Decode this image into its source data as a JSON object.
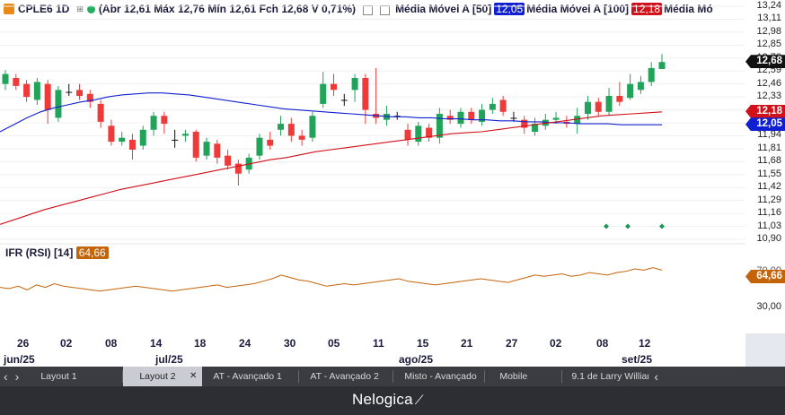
{
  "header": {
    "symbol": "CPLE6 1D",
    "ohlc": "(Abr 12,61 Máx 12,76 Mín 12,61 Fch 12,68 V 0,71%)",
    "ma50_label": "Média Móvel A [50]",
    "ma50_value": "12,05",
    "ma100_label": "Média Móvel A [100]",
    "ma100_value": "12,18",
    "ma_extra_label": "Média Mó"
  },
  "colors": {
    "up": "#22a35a",
    "down": "#ef3a3a",
    "ma50": "#1020d0",
    "ma100": "#d0101a",
    "rsi": "#c4640a",
    "bg": "#ffffff"
  },
  "price_axis": {
    "ticks": [
      "13,24",
      "13,11",
      "12,98",
      "12,85",
      "12,72",
      "12,59",
      "12,46",
      "12,33",
      "12,20",
      "12,07",
      "11,94",
      "11,81",
      "11,68",
      "11,55",
      "11,42",
      "11,29",
      "11,16",
      "11,03",
      "10,90"
    ],
    "last_price": "12,68",
    "ma100_tag": "12,18",
    "ma50_tag": "12,05"
  },
  "rsi": {
    "label": "IFR (RSI) [14]",
    "value": "64,66",
    "tick_70": "70,00",
    "tick_30": "30,00",
    "values": [
      55,
      54,
      56,
      53,
      57,
      55,
      58,
      56,
      55,
      54,
      53,
      52,
      53,
      54,
      55,
      56,
      55,
      54,
      53,
      52,
      53,
      54,
      55,
      56,
      57,
      55,
      56,
      57,
      58,
      60,
      62,
      65,
      63,
      61,
      60,
      58,
      56,
      57,
      58,
      57,
      58,
      59,
      60,
      61,
      62,
      60,
      59,
      58,
      57,
      58,
      59,
      60,
      61,
      62,
      61,
      60,
      59,
      61,
      63,
      65,
      64,
      65,
      66,
      64,
      65,
      67,
      66,
      65,
      67,
      68,
      70,
      69,
      71,
      69
    ]
  },
  "x_axis": {
    "days": [
      "26",
      "02",
      "08",
      "14",
      "18",
      "24",
      "30",
      "05",
      "11",
      "15",
      "21",
      "27",
      "02",
      "08",
      "12"
    ],
    "months": [
      "jun/25",
      "jul/25",
      "ago/25",
      "set/25"
    ]
  },
  "chart_data": {
    "type": "candlestick",
    "title": "CPLE6 1D",
    "ylim": [
      10.9,
      13.24
    ],
    "series_ma50": [
      11.98,
      12.05,
      12.12,
      12.18,
      12.22,
      12.25,
      12.28,
      12.3,
      12.33,
      12.35,
      12.36,
      12.37,
      12.37,
      12.36,
      12.35,
      12.33,
      12.31,
      12.29,
      12.27,
      12.25,
      12.23,
      12.21,
      12.2,
      12.19,
      12.18,
      12.17,
      12.16,
      12.15,
      12.14,
      12.13,
      12.13,
      12.12,
      12.12,
      12.11,
      12.11,
      12.1,
      12.1,
      12.09,
      12.09,
      12.08,
      12.08,
      12.07,
      12.07,
      12.06,
      12.06,
      12.06,
      12.05,
      12.05,
      12.05,
      12.05
    ],
    "series_ma100": [
      11.05,
      11.1,
      11.15,
      11.2,
      11.24,
      11.28,
      11.32,
      11.36,
      11.4,
      11.43,
      11.46,
      11.49,
      11.52,
      11.55,
      11.58,
      11.61,
      11.64,
      11.67,
      11.7,
      11.72,
      11.75,
      11.78,
      11.8,
      11.82,
      11.84,
      11.86,
      11.88,
      11.9,
      11.92,
      11.94,
      11.96,
      11.97,
      11.98,
      12.0,
      12.02,
      12.04,
      12.06,
      12.08,
      12.1,
      12.12,
      12.14,
      12.15,
      12.16,
      12.17,
      12.18
    ],
    "candles": [
      {
        "o": 12.46,
        "c": 12.56,
        "h": 12.6,
        "l": 12.4
      },
      {
        "o": 12.52,
        "c": 12.44,
        "h": 12.56,
        "l": 12.4
      },
      {
        "o": 12.46,
        "c": 12.33,
        "h": 12.5,
        "l": 12.28
      },
      {
        "o": 12.3,
        "c": 12.48,
        "h": 12.52,
        "l": 12.25
      },
      {
        "o": 12.46,
        "c": 12.2,
        "h": 12.5,
        "l": 12.06
      },
      {
        "o": 12.12,
        "c": 12.4,
        "h": 12.44,
        "l": 12.08
      },
      {
        "o": 12.38,
        "c": 12.38,
        "h": 12.46,
        "l": 12.34
      },
      {
        "o": 12.4,
        "c": 12.34,
        "h": 12.46,
        "l": 12.3
      },
      {
        "o": 12.36,
        "c": 12.28,
        "h": 12.4,
        "l": 12.22
      },
      {
        "o": 12.26,
        "c": 12.08,
        "h": 12.3,
        "l": 12.02
      },
      {
        "o": 12.04,
        "c": 11.88,
        "h": 12.1,
        "l": 11.84
      },
      {
        "o": 11.88,
        "c": 11.92,
        "h": 11.98,
        "l": 11.84
      },
      {
        "o": 11.9,
        "c": 11.8,
        "h": 11.96,
        "l": 11.7
      },
      {
        "o": 11.84,
        "c": 12.0,
        "h": 12.04,
        "l": 11.8
      },
      {
        "o": 12.0,
        "c": 12.14,
        "h": 12.18,
        "l": 11.94
      },
      {
        "o": 12.14,
        "c": 12.06,
        "h": 12.18,
        "l": 11.96
      },
      {
        "o": 11.9,
        "c": 11.9,
        "h": 12.0,
        "l": 11.82
      },
      {
        "o": 11.94,
        "c": 11.96,
        "h": 12.0,
        "l": 11.88
      },
      {
        "o": 11.98,
        "c": 11.72,
        "h": 12.0,
        "l": 11.68
      },
      {
        "o": 11.74,
        "c": 11.88,
        "h": 11.92,
        "l": 11.7
      },
      {
        "o": 11.86,
        "c": 11.72,
        "h": 11.9,
        "l": 11.66
      },
      {
        "o": 11.74,
        "c": 11.64,
        "h": 11.8,
        "l": 11.6
      },
      {
        "o": 11.66,
        "c": 11.56,
        "h": 11.7,
        "l": 11.44
      },
      {
        "o": 11.6,
        "c": 11.72,
        "h": 11.76,
        "l": 11.56
      },
      {
        "o": 11.74,
        "c": 11.92,
        "h": 11.96,
        "l": 11.7
      },
      {
        "o": 11.9,
        "c": 11.84,
        "h": 11.98,
        "l": 11.8
      },
      {
        "o": 12.0,
        "c": 12.06,
        "h": 12.14,
        "l": 11.94
      },
      {
        "o": 12.06,
        "c": 11.94,
        "h": 12.12,
        "l": 11.88
      },
      {
        "o": 11.94,
        "c": 11.9,
        "h": 12.0,
        "l": 11.84
      },
      {
        "o": 11.92,
        "c": 12.14,
        "h": 12.18,
        "l": 11.88
      },
      {
        "o": 12.26,
        "c": 12.46,
        "h": 12.58,
        "l": 12.22
      },
      {
        "o": 12.46,
        "c": 12.4,
        "h": 12.56,
        "l": 12.34
      },
      {
        "o": 12.3,
        "c": 12.3,
        "h": 12.36,
        "l": 12.24
      },
      {
        "o": 12.4,
        "c": 12.52,
        "h": 12.56,
        "l": 12.28
      },
      {
        "o": 12.52,
        "c": 12.2,
        "h": 12.56,
        "l": 12.06
      },
      {
        "o": 12.16,
        "c": 12.12,
        "h": 12.62,
        "l": 12.06
      },
      {
        "o": 12.1,
        "c": 12.16,
        "h": 12.24,
        "l": 12.04
      },
      {
        "o": 12.14,
        "c": 12.14,
        "h": 12.18,
        "l": 12.1
      },
      {
        "o": 12.0,
        "c": 11.9,
        "h": 12.06,
        "l": 11.84
      },
      {
        "o": 11.88,
        "c": 12.04,
        "h": 12.08,
        "l": 11.84
      },
      {
        "o": 12.02,
        "c": 11.92,
        "h": 12.06,
        "l": 11.88
      },
      {
        "o": 11.92,
        "c": 12.16,
        "h": 12.22,
        "l": 11.86
      },
      {
        "o": 12.14,
        "c": 12.1,
        "h": 12.2,
        "l": 12.06
      },
      {
        "o": 12.06,
        "c": 12.18,
        "h": 12.22,
        "l": 12.02
      },
      {
        "o": 12.18,
        "c": 12.1,
        "h": 12.22,
        "l": 12.06
      },
      {
        "o": 12.08,
        "c": 12.2,
        "h": 12.26,
        "l": 12.04
      },
      {
        "o": 12.2,
        "c": 12.26,
        "h": 12.32,
        "l": 12.16
      },
      {
        "o": 12.3,
        "c": 12.18,
        "h": 12.34,
        "l": 12.14
      },
      {
        "o": 12.12,
        "c": 12.12,
        "h": 12.18,
        "l": 12.08
      },
      {
        "o": 12.1,
        "c": 12.02,
        "h": 12.14,
        "l": 11.96
      },
      {
        "o": 11.98,
        "c": 12.06,
        "h": 12.12,
        "l": 11.94
      },
      {
        "o": 12.04,
        "c": 12.1,
        "h": 12.16,
        "l": 12.0
      },
      {
        "o": 12.1,
        "c": 12.12,
        "h": 12.18,
        "l": 12.06
      },
      {
        "o": 12.08,
        "c": 12.06,
        "h": 12.14,
        "l": 12.02
      },
      {
        "o": 12.06,
        "c": 12.14,
        "h": 12.22,
        "l": 11.96
      },
      {
        "o": 12.16,
        "c": 12.28,
        "h": 12.34,
        "l": 12.1
      },
      {
        "o": 12.28,
        "c": 12.18,
        "h": 12.32,
        "l": 12.14
      },
      {
        "o": 12.18,
        "c": 12.34,
        "h": 12.42,
        "l": 12.14
      },
      {
        "o": 12.34,
        "c": 12.28,
        "h": 12.48,
        "l": 12.24
      },
      {
        "o": 12.32,
        "c": 12.46,
        "h": 12.56,
        "l": 12.3
      },
      {
        "o": 12.4,
        "c": 12.48,
        "h": 12.54,
        "l": 12.36
      },
      {
        "o": 12.48,
        "c": 12.62,
        "h": 12.68,
        "l": 12.44
      },
      {
        "o": 12.61,
        "c": 12.68,
        "h": 12.76,
        "l": 12.61
      }
    ],
    "markers": [
      11.03,
      11.03,
      11.03
    ]
  },
  "tabs": {
    "prev": "‹",
    "next": "›",
    "items": [
      "Layout 1",
      "Layout 2",
      "AT - Avançado 1",
      "AT - Avançado 2",
      "Misto - Avançado",
      "Mobile",
      "9.1 de Larry Willian"
    ],
    "active_close": "✕",
    "more": "‹"
  },
  "footer": {
    "brand": "Nelogica"
  }
}
